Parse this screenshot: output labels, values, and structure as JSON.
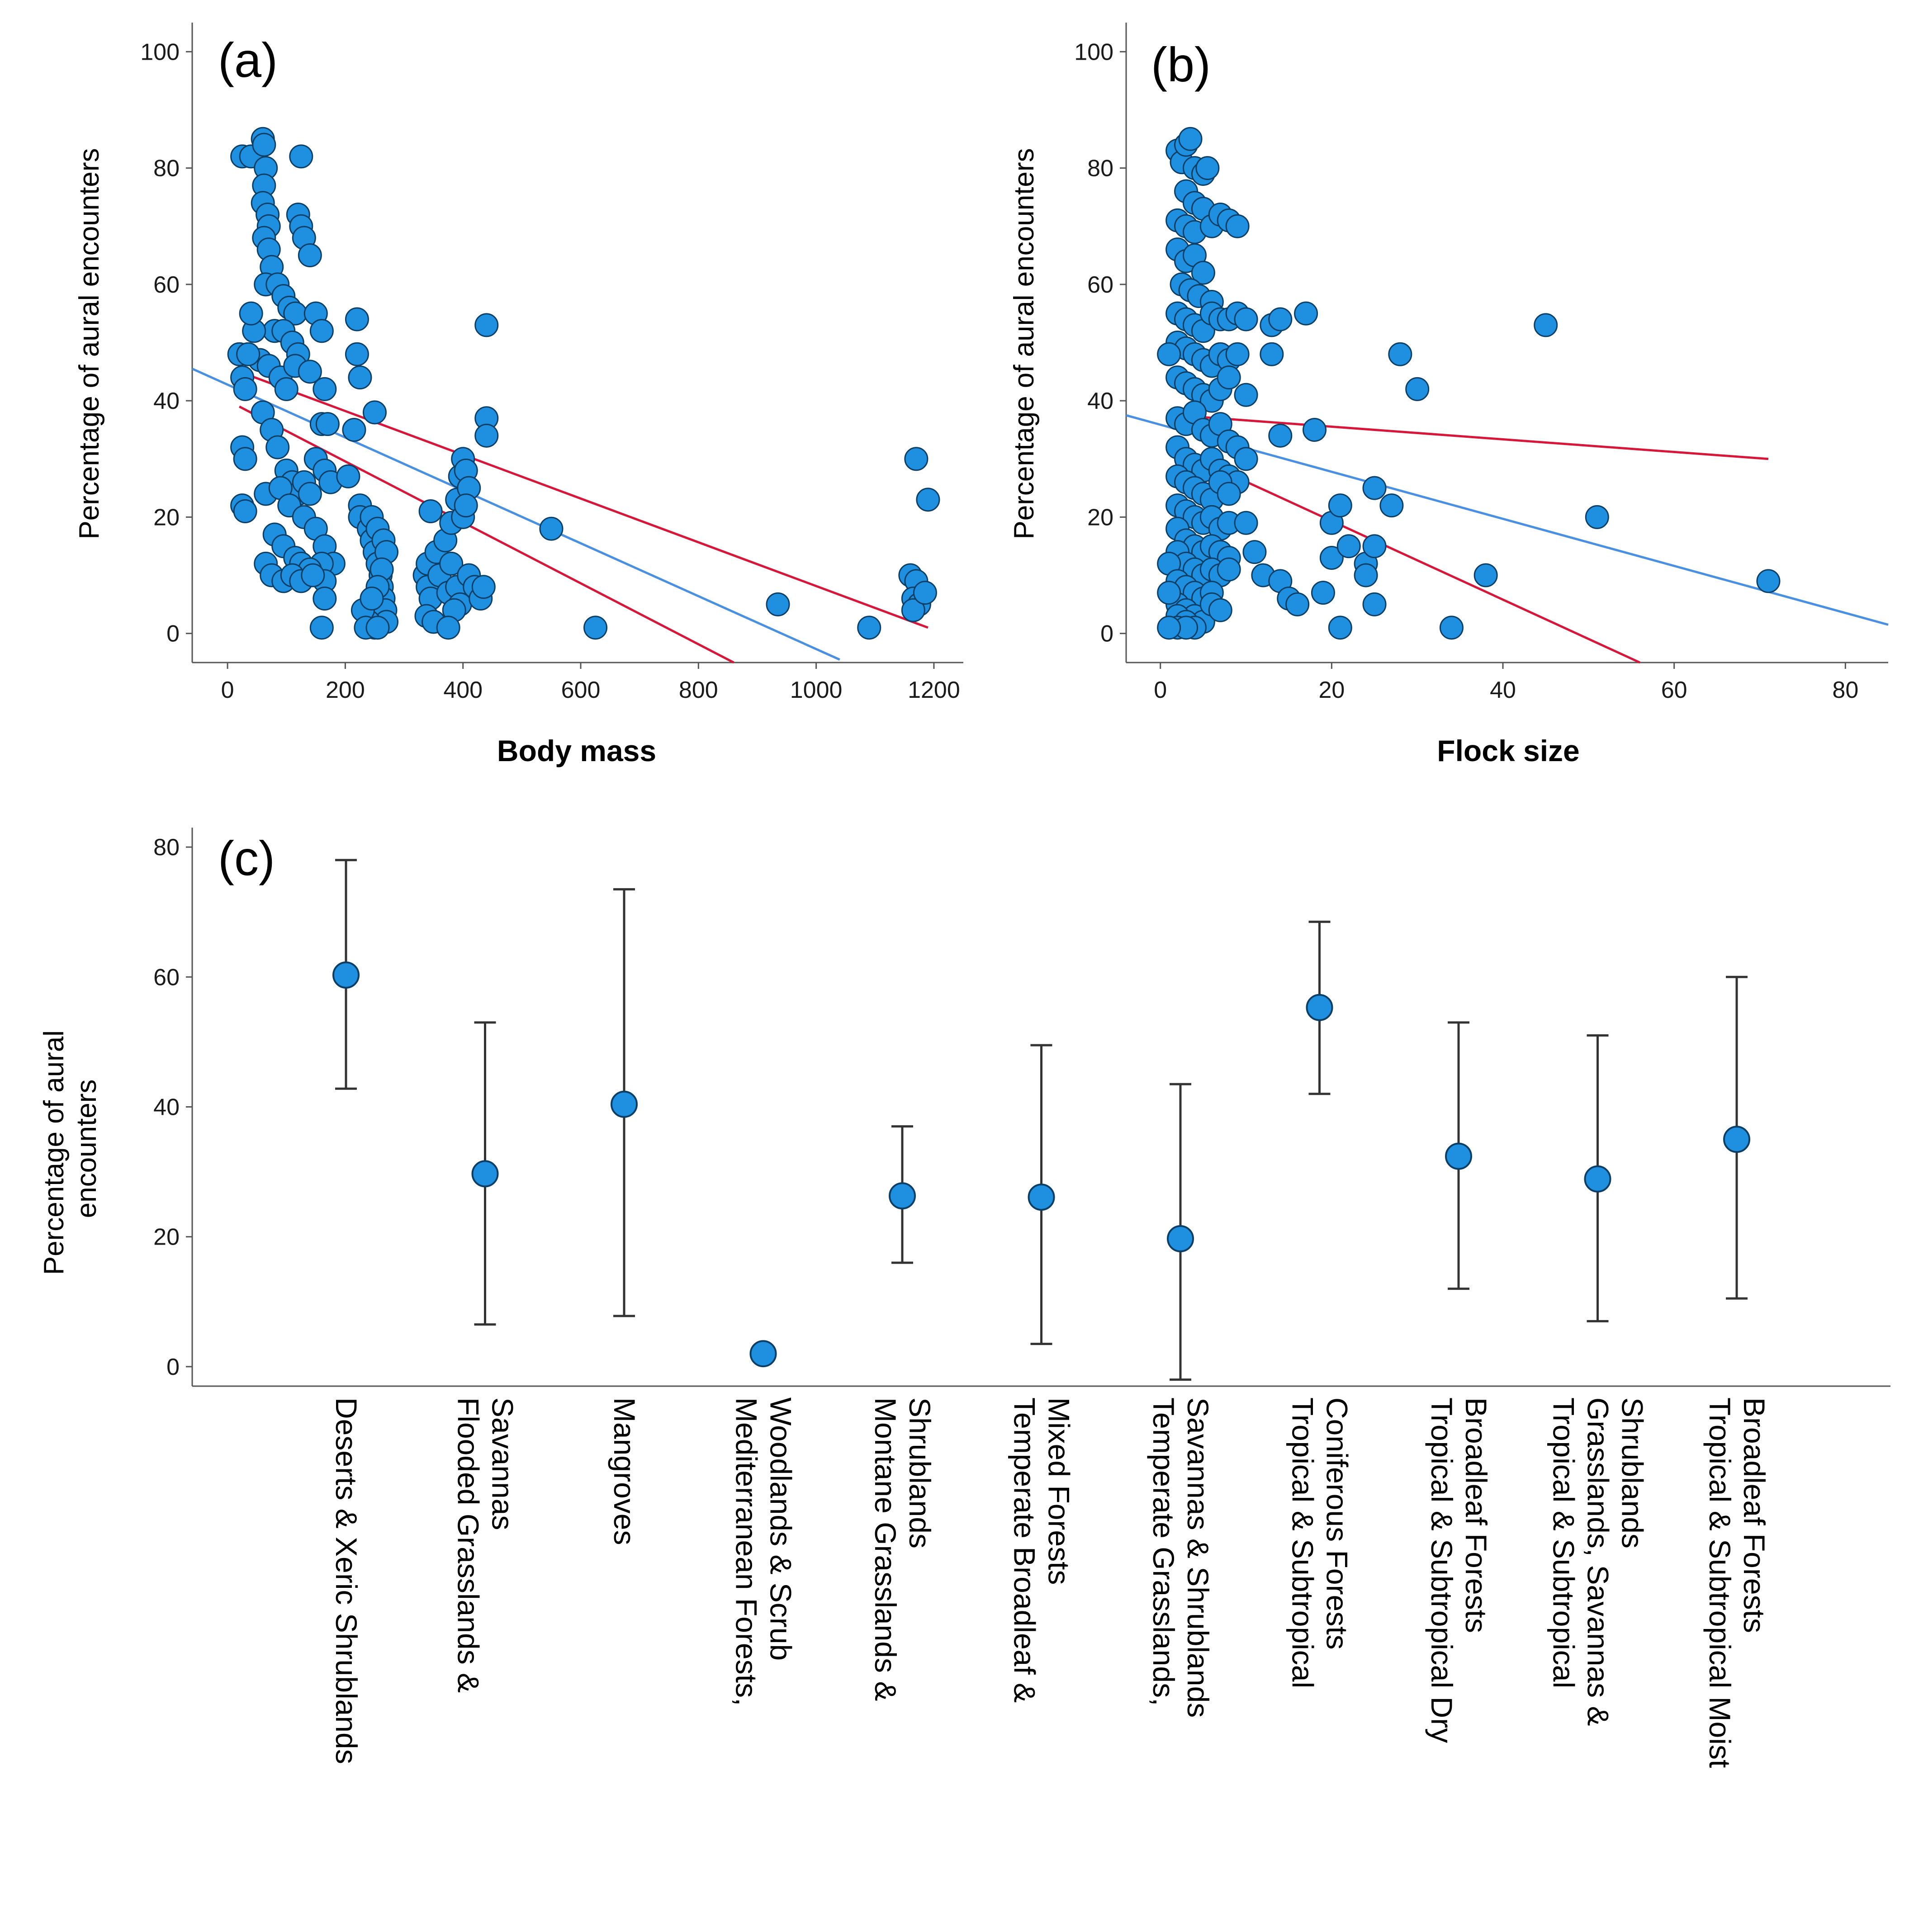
{
  "colors": {
    "point_fill": "#1f8fe0",
    "point_stroke": "#0c3f66",
    "fit_line": "#4a90e2",
    "ci_line": "#d6173a",
    "axis": "#555555"
  },
  "chart_data": [
    {
      "panel": "(a)",
      "type": "scatter",
      "xlabel": "Body mass",
      "ylabel": "Percentage of aural encounters",
      "xlim": [
        -60,
        1250
      ],
      "ylim": [
        -5,
        105
      ],
      "xticks": [
        "0",
        "200",
        "400",
        "600",
        "800",
        "1000",
        "1200"
      ],
      "xtick_values": [
        0,
        200,
        400,
        600,
        800,
        1000,
        1200
      ],
      "yticks": [
        "0",
        "20",
        "40",
        "60",
        "80",
        "100"
      ],
      "ytick_values": [
        0,
        20,
        40,
        60,
        80,
        100
      ],
      "points": [
        [
          25,
          82
        ],
        [
          40,
          82
        ],
        [
          60,
          85
        ],
        [
          62,
          84
        ],
        [
          65,
          80
        ],
        [
          62,
          77
        ],
        [
          60,
          74
        ],
        [
          68,
          72
        ],
        [
          70,
          70
        ],
        [
          62,
          68
        ],
        [
          70,
          66
        ],
        [
          75,
          63
        ],
        [
          65,
          60
        ],
        [
          85,
          60
        ],
        [
          95,
          58
        ],
        [
          105,
          56
        ],
        [
          115,
          55
        ],
        [
          80,
          52
        ],
        [
          95,
          52
        ],
        [
          110,
          50
        ],
        [
          120,
          48
        ],
        [
          55,
          47
        ],
        [
          70,
          46
        ],
        [
          90,
          44
        ],
        [
          100,
          42
        ],
        [
          125,
          82
        ],
        [
          120,
          72
        ],
        [
          125,
          70
        ],
        [
          130,
          68
        ],
        [
          140,
          65
        ],
        [
          150,
          55
        ],
        [
          160,
          52
        ],
        [
          115,
          46
        ],
        [
          140,
          45
        ],
        [
          165,
          42
        ],
        [
          160,
          36
        ],
        [
          170,
          36
        ],
        [
          150,
          30
        ],
        [
          165,
          28
        ],
        [
          175,
          26
        ],
        [
          60,
          38
        ],
        [
          75,
          35
        ],
        [
          85,
          32
        ],
        [
          100,
          28
        ],
        [
          110,
          26
        ],
        [
          120,
          24
        ],
        [
          130,
          26
        ],
        [
          140,
          24
        ],
        [
          65,
          24
        ],
        [
          90,
          25
        ],
        [
          105,
          22
        ],
        [
          130,
          20
        ],
        [
          150,
          18
        ],
        [
          165,
          15
        ],
        [
          180,
          12
        ],
        [
          160,
          12
        ],
        [
          165,
          9
        ],
        [
          165,
          6
        ],
        [
          160,
          1
        ],
        [
          80,
          17
        ],
        [
          95,
          15
        ],
        [
          115,
          13
        ],
        [
          125,
          12
        ],
        [
          140,
          11
        ],
        [
          65,
          12
        ],
        [
          75,
          10
        ],
        [
          95,
          9
        ],
        [
          110,
          10
        ],
        [
          125,
          9
        ],
        [
          145,
          10
        ],
        [
          20,
          48
        ],
        [
          25,
          44
        ],
        [
          30,
          42
        ],
        [
          25,
          32
        ],
        [
          30,
          30
        ],
        [
          25,
          22
        ],
        [
          30,
          21
        ],
        [
          35,
          48
        ],
        [
          45,
          52
        ],
        [
          40,
          55
        ],
        [
          220,
          54
        ],
        [
          220,
          48
        ],
        [
          225,
          44
        ],
        [
          215,
          35
        ],
        [
          250,
          38
        ],
        [
          205,
          27
        ],
        [
          225,
          22
        ],
        [
          225,
          20
        ],
        [
          240,
          18
        ],
        [
          245,
          16
        ],
        [
          250,
          14
        ],
        [
          255,
          12
        ],
        [
          260,
          10
        ],
        [
          262,
          8
        ],
        [
          265,
          6
        ],
        [
          268,
          4
        ],
        [
          270,
          2
        ],
        [
          250,
          1
        ],
        [
          240,
          2
        ],
        [
          230,
          4
        ],
        [
          245,
          20
        ],
        [
          255,
          18
        ],
        [
          265,
          16
        ],
        [
          270,
          14
        ],
        [
          262,
          11
        ],
        [
          255,
          8
        ],
        [
          245,
          6
        ],
        [
          235,
          1
        ],
        [
          255,
          1
        ],
        [
          335,
          10
        ],
        [
          340,
          8
        ],
        [
          345,
          6
        ],
        [
          338,
          3
        ],
        [
          350,
          2
        ],
        [
          340,
          12
        ],
        [
          360,
          10
        ],
        [
          375,
          7
        ],
        [
          355,
          14
        ],
        [
          370,
          16
        ],
        [
          345,
          21
        ],
        [
          380,
          12
        ],
        [
          390,
          8
        ],
        [
          395,
          5
        ],
        [
          385,
          4
        ],
        [
          375,
          1
        ],
        [
          380,
          19
        ],
        [
          390,
          23
        ],
        [
          395,
          27
        ],
        [
          400,
          30
        ],
        [
          405,
          28
        ],
        [
          410,
          25
        ],
        [
          400,
          20
        ],
        [
          405,
          22
        ],
        [
          410,
          10
        ],
        [
          420,
          8
        ],
        [
          430,
          6
        ],
        [
          435,
          8
        ],
        [
          440,
          53
        ],
        [
          440,
          37
        ],
        [
          440,
          34
        ],
        [
          550,
          18
        ],
        [
          625,
          1
        ],
        [
          935,
          5
        ],
        [
          1090,
          1
        ],
        [
          1170,
          30
        ],
        [
          1190,
          23
        ],
        [
          1160,
          10
        ],
        [
          1170,
          9
        ],
        [
          1165,
          6
        ],
        [
          1175,
          5
        ],
        [
          1165,
          4
        ],
        [
          1185,
          7
        ]
      ],
      "fit_line": [
        [
          -60,
          45.5
        ],
        [
          1040,
          -4.5
        ]
      ],
      "ci_upper": [
        [
          20,
          45
        ],
        [
          1190,
          1
        ]
      ],
      "ci_lower": [
        [
          20,
          39
        ],
        [
          860,
          -5
        ]
      ]
    },
    {
      "panel": "(b)",
      "type": "scatter",
      "xlabel": "Flock size",
      "ylabel": "Percentage of aural encounters",
      "xlim": [
        -4,
        85
      ],
      "ylim": [
        -5,
        105
      ],
      "xticks": [
        "0",
        "20",
        "40",
        "60",
        "80"
      ],
      "xtick_values": [
        0,
        20,
        40,
        60,
        80
      ],
      "yticks": [
        "0",
        "20",
        "40",
        "60",
        "80",
        "100"
      ],
      "ytick_values": [
        0,
        20,
        40,
        60,
        80,
        100
      ],
      "points": [
        [
          2,
          83
        ],
        [
          2.5,
          81
        ],
        [
          3,
          84
        ],
        [
          3.5,
          85
        ],
        [
          4,
          80
        ],
        [
          5,
          79
        ],
        [
          5.5,
          80
        ],
        [
          3,
          76
        ],
        [
          4,
          74
        ],
        [
          5,
          73
        ],
        [
          2,
          71
        ],
        [
          3,
          70
        ],
        [
          4,
          69
        ],
        [
          6,
          70
        ],
        [
          7,
          72
        ],
        [
          8,
          71
        ],
        [
          9,
          70
        ],
        [
          2,
          66
        ],
        [
          3,
          64
        ],
        [
          4,
          65
        ],
        [
          5,
          62
        ],
        [
          2.5,
          60
        ],
        [
          3.5,
          59
        ],
        [
          4.5,
          58
        ],
        [
          6,
          57
        ],
        [
          2,
          55
        ],
        [
          3,
          54
        ],
        [
          4,
          53
        ],
        [
          5,
          52
        ],
        [
          6,
          55
        ],
        [
          7,
          54
        ],
        [
          8,
          54
        ],
        [
          9,
          55
        ],
        [
          10,
          54
        ],
        [
          2,
          50
        ],
        [
          3,
          49
        ],
        [
          4,
          48
        ],
        [
          5,
          47
        ],
        [
          6,
          46
        ],
        [
          7,
          48
        ],
        [
          8,
          47
        ],
        [
          9,
          48
        ],
        [
          1,
          48
        ],
        [
          2,
          44
        ],
        [
          3,
          43
        ],
        [
          4,
          42
        ],
        [
          5,
          41
        ],
        [
          6,
          40
        ],
        [
          7,
          42
        ],
        [
          8,
          44
        ],
        [
          10,
          41
        ],
        [
          2,
          37
        ],
        [
          3,
          36
        ],
        [
          4,
          38
        ],
        [
          5,
          35
        ],
        [
          6,
          34
        ],
        [
          7,
          36
        ],
        [
          8,
          33
        ],
        [
          9,
          32
        ],
        [
          2,
          32
        ],
        [
          3,
          30
        ],
        [
          4,
          29
        ],
        [
          5,
          28
        ],
        [
          6,
          30
        ],
        [
          7,
          28
        ],
        [
          8,
          27
        ],
        [
          9,
          26
        ],
        [
          10,
          30
        ],
        [
          2,
          27
        ],
        [
          3,
          26
        ],
        [
          4,
          25
        ],
        [
          5,
          24
        ],
        [
          6,
          23
        ],
        [
          7,
          26
        ],
        [
          8,
          24
        ],
        [
          2,
          22
        ],
        [
          3,
          21
        ],
        [
          4,
          20
        ],
        [
          5,
          19
        ],
        [
          6,
          20
        ],
        [
          7,
          18
        ],
        [
          8,
          19
        ],
        [
          2,
          18
        ],
        [
          3,
          16
        ],
        [
          4,
          15
        ],
        [
          5,
          14
        ],
        [
          6,
          15
        ],
        [
          7,
          14
        ],
        [
          8,
          13
        ],
        [
          2,
          14
        ],
        [
          3,
          12
        ],
        [
          4,
          11
        ],
        [
          5,
          10
        ],
        [
          6,
          11
        ],
        [
          7,
          10
        ],
        [
          8,
          11
        ],
        [
          1,
          12
        ],
        [
          2,
          9
        ],
        [
          3,
          8
        ],
        [
          4,
          7
        ],
        [
          5,
          6
        ],
        [
          6,
          7
        ],
        [
          2,
          5
        ],
        [
          3,
          4
        ],
        [
          4,
          3
        ],
        [
          5,
          2
        ],
        [
          6,
          5
        ],
        [
          7,
          4
        ],
        [
          1,
          7
        ],
        [
          2,
          3
        ],
        [
          3,
          2
        ],
        [
          4,
          1
        ],
        [
          2,
          1
        ],
        [
          3,
          1
        ],
        [
          1,
          1
        ],
        [
          10,
          19
        ],
        [
          11,
          14
        ],
        [
          12,
          10
        ],
        [
          13,
          53
        ],
        [
          14,
          54
        ],
        [
          14,
          34
        ],
        [
          13,
          48
        ],
        [
          14,
          9
        ],
        [
          15,
          6
        ],
        [
          16,
          5
        ],
        [
          17,
          55
        ],
        [
          18,
          35
        ],
        [
          19,
          7
        ],
        [
          20,
          13
        ],
        [
          20,
          19
        ],
        [
          21,
          1
        ],
        [
          21,
          22
        ],
        [
          22,
          15
        ],
        [
          24,
          12
        ],
        [
          24,
          10
        ],
        [
          25,
          25
        ],
        [
          25,
          15
        ],
        [
          25,
          5
        ],
        [
          27,
          22
        ],
        [
          28,
          48
        ],
        [
          30,
          42
        ],
        [
          34,
          1
        ],
        [
          38,
          10
        ],
        [
          45,
          53
        ],
        [
          51,
          20
        ],
        [
          71,
          9
        ]
      ],
      "fit_line": [
        [
          -4,
          37.5
        ],
        [
          85,
          1.5
        ]
      ],
      "ci_upper": [
        [
          2,
          37.5
        ],
        [
          71,
          30
        ]
      ],
      "ci_lower": [
        [
          2,
          31.5
        ],
        [
          56,
          -5
        ]
      ]
    },
    {
      "panel": "(c)",
      "type": "errorbar",
      "xlabel": "",
      "ylabel": "Percentage of aural encounters",
      "ylim": [
        -3,
        83
      ],
      "yticks": [
        "0",
        "20",
        "40",
        "60",
        "80"
      ],
      "ytick_values": [
        0,
        20,
        40,
        60,
        80
      ],
      "categories": [
        [
          "Deserts & Xeric Shrublands"
        ],
        [
          "Flooded Grasslands &",
          "Savannas"
        ],
        [
          "Mangroves"
        ],
        [
          "Mediterranean Forests,",
          "Woodlands & Scrub"
        ],
        [
          "Montane Grasslands &",
          "Shrublands"
        ],
        [
          "Temperate Broadleaf &",
          "Mixed Forests"
        ],
        [
          "Temperate Grasslands,",
          "Savannas & Shrublands"
        ],
        [
          "Tropical & Subtropical",
          "Coniferous Forests"
        ],
        [
          "Tropical & Subtropical Dry",
          "Broadleaf Forests"
        ],
        [
          "Tropical & Subtropical",
          "Grasslands, Savannas &",
          "Shrublands"
        ],
        [
          "Tropical & Subtropical Moist",
          "Broadleaf Forests"
        ]
      ],
      "means": [
        60.3,
        29.7,
        40.4,
        2.0,
        26.3,
        26.1,
        19.7,
        55.3,
        32.4,
        28.9,
        35.0
      ],
      "upper": [
        78.0,
        53.0,
        73.5,
        null,
        37.0,
        49.5,
        43.5,
        68.5,
        53.0,
        51.0,
        60.0
      ],
      "lower": [
        42.8,
        6.5,
        7.8,
        null,
        16.0,
        3.5,
        -2.0,
        42.0,
        12.0,
        7.0,
        10.5
      ]
    }
  ]
}
